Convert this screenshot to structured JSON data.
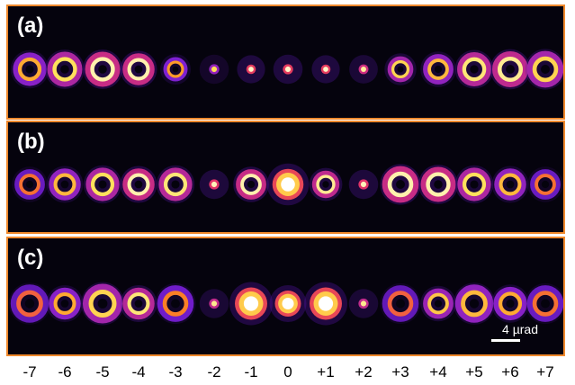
{
  "panels": [
    {
      "id": "a",
      "label": "(a)",
      "spots": [
        {
          "order": "-7",
          "kind": "ring",
          "size": 0.8,
          "bright": 0.65
        },
        {
          "order": "-6",
          "kind": "ring",
          "size": 0.85,
          "bright": 0.85
        },
        {
          "order": "-5",
          "kind": "ring",
          "size": 0.85,
          "bright": 1.0
        },
        {
          "order": "-4",
          "kind": "ring",
          "size": 0.75,
          "bright": 1.0
        },
        {
          "order": "-3",
          "kind": "ring",
          "size": 0.5,
          "bright": 0.6
        },
        {
          "order": "-2",
          "kind": "dot",
          "size": 0.45,
          "bright": 0.55
        },
        {
          "order": "-1",
          "kind": "dot",
          "size": 0.4,
          "bright": 0.95
        },
        {
          "order": "0",
          "kind": "dot",
          "size": 0.45,
          "bright": 0.95
        },
        {
          "order": "+1",
          "kind": "dot",
          "size": 0.4,
          "bright": 0.95
        },
        {
          "order": "+2",
          "kind": "dot",
          "size": 0.42,
          "bright": 0.8
        },
        {
          "order": "+3",
          "kind": "ring",
          "size": 0.55,
          "bright": 0.8
        },
        {
          "order": "+4",
          "kind": "ring",
          "size": 0.7,
          "bright": 0.7
        },
        {
          "order": "+5",
          "kind": "ring",
          "size": 0.82,
          "bright": 0.9
        },
        {
          "order": "+6",
          "kind": "ring",
          "size": 0.88,
          "bright": 0.95
        },
        {
          "order": "+7",
          "kind": "ring",
          "size": 0.9,
          "bright": 0.8
        }
      ]
    },
    {
      "id": "b",
      "label": "(b)",
      "spots": [
        {
          "order": "-7",
          "kind": "ring",
          "size": 0.7,
          "bright": 0.45
        },
        {
          "order": "-6",
          "kind": "ring",
          "size": 0.75,
          "bright": 0.7
        },
        {
          "order": "-5",
          "kind": "ring",
          "size": 0.8,
          "bright": 0.85
        },
        {
          "order": "-4",
          "kind": "ring",
          "size": 0.75,
          "bright": 1.0
        },
        {
          "order": "-3",
          "kind": "ring",
          "size": 0.8,
          "bright": 0.9
        },
        {
          "order": "-2",
          "kind": "dot",
          "size": 0.45,
          "bright": 0.9
        },
        {
          "order": "-1",
          "kind": "ring",
          "size": 0.7,
          "bright": 1.0
        },
        {
          "order": "0",
          "kind": "blob",
          "size": 0.95,
          "bright": 1.0
        },
        {
          "order": "+1",
          "kind": "ring",
          "size": 0.6,
          "bright": 0.95
        },
        {
          "order": "+2",
          "kind": "dot",
          "size": 0.45,
          "bright": 0.9
        },
        {
          "order": "+3",
          "kind": "ring",
          "size": 0.9,
          "bright": 1.0
        },
        {
          "order": "+4",
          "kind": "ring",
          "size": 0.85,
          "bright": 1.0
        },
        {
          "order": "+5",
          "kind": "ring",
          "size": 0.8,
          "bright": 0.85
        },
        {
          "order": "+6",
          "kind": "ring",
          "size": 0.75,
          "bright": 0.7
        },
        {
          "order": "+7",
          "kind": "ring",
          "size": 0.7,
          "bright": 0.45
        }
      ]
    },
    {
      "id": "c",
      "label": "(c)",
      "spots": [
        {
          "order": "-7",
          "kind": "ring",
          "size": 0.95,
          "bright": 0.4
        },
        {
          "order": "-6",
          "kind": "ring",
          "size": 0.75,
          "bright": 0.65
        },
        {
          "order": "-5",
          "kind": "ring",
          "size": 1.0,
          "bright": 0.8
        },
        {
          "order": "-4",
          "kind": "ring",
          "size": 0.75,
          "bright": 0.9
        },
        {
          "order": "-3",
          "kind": "ring",
          "size": 0.9,
          "bright": 0.5
        },
        {
          "order": "-2",
          "kind": "dot",
          "size": 0.45,
          "bright": 0.75
        },
        {
          "order": "-1",
          "kind": "blob",
          "size": 1.0,
          "bright": 1.0
        },
        {
          "order": "0",
          "kind": "blob",
          "size": 0.75,
          "bright": 1.0
        },
        {
          "order": "+1",
          "kind": "blob",
          "size": 1.0,
          "bright": 1.0
        },
        {
          "order": "+2",
          "kind": "dot",
          "size": 0.45,
          "bright": 0.75
        },
        {
          "order": "+3",
          "kind": "ring",
          "size": 0.9,
          "bright": 0.4
        },
        {
          "order": "+4",
          "kind": "ring",
          "size": 0.7,
          "bright": 0.75
        },
        {
          "order": "+5",
          "kind": "ring",
          "size": 0.95,
          "bright": 0.7
        },
        {
          "order": "+6",
          "kind": "ring",
          "size": 0.8,
          "bright": 0.65
        },
        {
          "order": "+7",
          "kind": "ring",
          "size": 0.9,
          "bright": 0.45
        }
      ]
    }
  ],
  "scale_bar": {
    "label": "4 µrad"
  },
  "axis_ticks": [
    "-7",
    "-6",
    "-5",
    "-4",
    "-3",
    "-2",
    "-1",
    "0",
    "+1",
    "+2",
    "+3",
    "+4",
    "+5",
    "+6",
    "+7"
  ],
  "colors": {
    "frame": "#f0892c",
    "background": "#05030d",
    "colormap": [
      "#2a0a6e",
      "#7a1fd6",
      "#e0306a",
      "#ff8a1c",
      "#ffe15a",
      "#ffffff"
    ]
  }
}
